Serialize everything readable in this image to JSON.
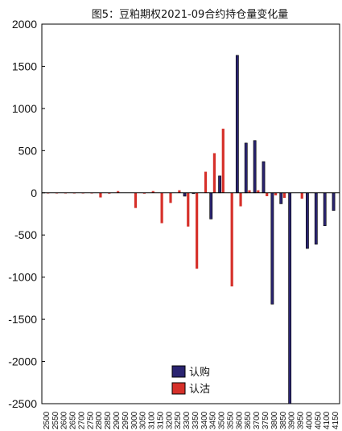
{
  "chart_data": {
    "type": "bar",
    "title": "图5：豆粕期权2021-09合约持仓量变化量",
    "xlabel": "",
    "ylabel": "",
    "ylim": [
      -2500,
      2000
    ],
    "yticks": [
      2000,
      1500,
      1000,
      500,
      0,
      -500,
      -1000,
      -1500,
      -2000,
      -2500
    ],
    "grid": false,
    "legend_position": "bottom-center",
    "categories": [
      "2500",
      "2550",
      "2600",
      "2650",
      "2700",
      "2750",
      "2800",
      "2850",
      "2900",
      "2950",
      "3000",
      "3050",
      "3100",
      "3150",
      "3200",
      "3250",
      "3300",
      "3350",
      "3400",
      "3450",
      "3500",
      "3550",
      "3600",
      "3650",
      "3700",
      "3750",
      "3800",
      "3850",
      "3900",
      "3950",
      "4000",
      "4050",
      "4100",
      "4150"
    ],
    "series": [
      {
        "name": "认购",
        "color": "#2a2470",
        "values": [
          0,
          0,
          0,
          0,
          0,
          0,
          0,
          0,
          0,
          0,
          0,
          0,
          0,
          0,
          0,
          0,
          -40,
          -10,
          0,
          -310,
          200,
          0,
          1630,
          590,
          620,
          370,
          -1320,
          -130,
          -2500,
          0,
          -660,
          -610,
          -390,
          -210
        ]
      },
      {
        "name": "认沽",
        "color": "#d6302a",
        "values": [
          -5,
          -5,
          -5,
          -5,
          -5,
          -5,
          -55,
          -10,
          20,
          0,
          -180,
          -10,
          20,
          -360,
          -120,
          30,
          -400,
          -900,
          250,
          470,
          760,
          -1110,
          -160,
          30,
          30,
          -40,
          -30,
          -60,
          0,
          -70,
          0,
          0,
          0,
          0
        ]
      }
    ]
  }
}
